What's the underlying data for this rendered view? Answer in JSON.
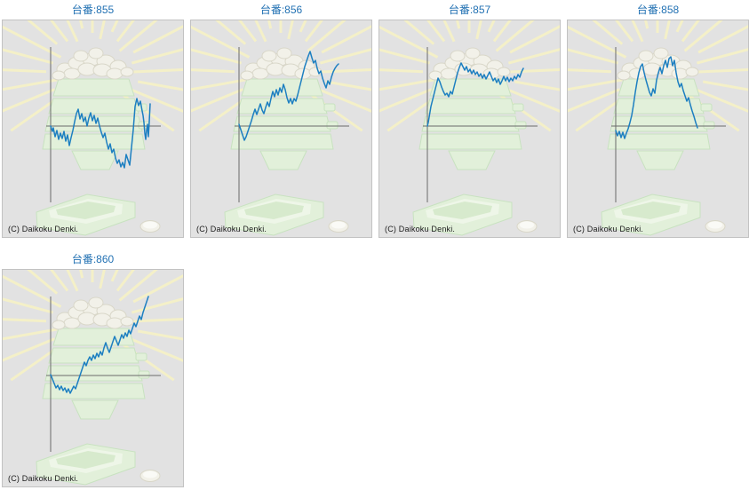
{
  "copyright": "(C) Daikoku Denki.",
  "title_prefix": "台番",
  "colors": {
    "title": "#2271b3",
    "line": "#1d7fc1",
    "axis": "#6a6a6a",
    "panel_bg": "#e2e2e2",
    "panel_border": "#c2c2c2",
    "ray": "#f4f0c8",
    "green_fill": "#e2f0da",
    "green_stroke": "#c8e2c0",
    "green_inner": "#eef6e8",
    "green_hole": "#d7eacd",
    "ball_fill": "#f2f1e9",
    "ball_stroke": "#d9d7c9",
    "copyright": "#1b1b1b"
  },
  "chart_data": [
    {
      "type": "line",
      "title": "台番:855",
      "machine_no": "855",
      "xlabel": "",
      "ylabel": "",
      "grid": false,
      "legend": "none",
      "units": "pixels relative to axis origin (y positive = above baseline)",
      "points": [
        [
          0,
          0
        ],
        [
          2,
          -6
        ],
        [
          3,
          -2
        ],
        [
          5,
          -12
        ],
        [
          7,
          -5
        ],
        [
          9,
          -15
        ],
        [
          11,
          -8
        ],
        [
          13,
          -14
        ],
        [
          15,
          -6
        ],
        [
          17,
          -17
        ],
        [
          19,
          -10
        ],
        [
          21,
          -22
        ],
        [
          23,
          -13
        ],
        [
          25,
          -5
        ],
        [
          27,
          5
        ],
        [
          29,
          14
        ],
        [
          31,
          19
        ],
        [
          33,
          8
        ],
        [
          35,
          14
        ],
        [
          37,
          5
        ],
        [
          39,
          10
        ],
        [
          41,
          0
        ],
        [
          43,
          9
        ],
        [
          45,
          15
        ],
        [
          47,
          6
        ],
        [
          49,
          12
        ],
        [
          51,
          3
        ],
        [
          53,
          9
        ],
        [
          55,
          0
        ],
        [
          57,
          -7
        ],
        [
          59,
          -13
        ],
        [
          61,
          -8
        ],
        [
          63,
          -18
        ],
        [
          65,
          -26
        ],
        [
          67,
          -20
        ],
        [
          69,
          -30
        ],
        [
          71,
          -26
        ],
        [
          73,
          -36
        ],
        [
          75,
          -42
        ],
        [
          77,
          -38
        ],
        [
          79,
          -46
        ],
        [
          81,
          -41
        ],
        [
          83,
          -47
        ],
        [
          85,
          -32
        ],
        [
          87,
          -38
        ],
        [
          89,
          -44
        ],
        [
          91,
          -24
        ],
        [
          93,
          -4
        ],
        [
          95,
          22
        ],
        [
          97,
          31
        ],
        [
          99,
          23
        ],
        [
          101,
          28
        ],
        [
          103,
          17
        ],
        [
          104,
          12
        ],
        [
          105,
          4
        ],
        [
          106,
          -8
        ],
        [
          107,
          -15
        ],
        [
          108,
          -5
        ],
        [
          109,
          2
        ],
        [
          110,
          -12
        ],
        [
          111,
          5
        ],
        [
          112,
          25
        ]
      ]
    },
    {
      "type": "line",
      "title": "台番:856",
      "machine_no": "856",
      "xlabel": "",
      "ylabel": "",
      "grid": false,
      "legend": "none",
      "units": "pixels relative to axis origin (y positive = above baseline)",
      "points": [
        [
          0,
          2
        ],
        [
          2,
          -4
        ],
        [
          4,
          -10
        ],
        [
          6,
          -16
        ],
        [
          8,
          -12
        ],
        [
          10,
          -6
        ],
        [
          12,
          0
        ],
        [
          14,
          6
        ],
        [
          16,
          13
        ],
        [
          18,
          19
        ],
        [
          20,
          13
        ],
        [
          22,
          19
        ],
        [
          24,
          25
        ],
        [
          26,
          18
        ],
        [
          28,
          14
        ],
        [
          30,
          21
        ],
        [
          32,
          27
        ],
        [
          34,
          22
        ],
        [
          36,
          31
        ],
        [
          38,
          39
        ],
        [
          40,
          33
        ],
        [
          42,
          41
        ],
        [
          44,
          35
        ],
        [
          46,
          43
        ],
        [
          48,
          38
        ],
        [
          50,
          47
        ],
        [
          52,
          41
        ],
        [
          54,
          32
        ],
        [
          56,
          26
        ],
        [
          58,
          31
        ],
        [
          60,
          25
        ],
        [
          62,
          31
        ],
        [
          64,
          28
        ],
        [
          66,
          35
        ],
        [
          68,
          43
        ],
        [
          70,
          51
        ],
        [
          72,
          59
        ],
        [
          74,
          67
        ],
        [
          76,
          73
        ],
        [
          78,
          79
        ],
        [
          80,
          84
        ],
        [
          82,
          77
        ],
        [
          84,
          71
        ],
        [
          86,
          74
        ],
        [
          88,
          65
        ],
        [
          90,
          59
        ],
        [
          92,
          62
        ],
        [
          94,
          54
        ],
        [
          96,
          48
        ],
        [
          98,
          43
        ],
        [
          100,
          51
        ],
        [
          102,
          47
        ],
        [
          104,
          55
        ],
        [
          106,
          61
        ],
        [
          108,
          65
        ],
        [
          110,
          68
        ],
        [
          112,
          70
        ]
      ]
    },
    {
      "type": "line",
      "title": "台番:857",
      "machine_no": "857",
      "xlabel": "",
      "ylabel": "",
      "grid": false,
      "legend": "none",
      "units": "pixels relative to axis origin (y positive = above baseline)",
      "points": [
        [
          0,
          0
        ],
        [
          1,
          4
        ],
        [
          2,
          10
        ],
        [
          3,
          16
        ],
        [
          4,
          22
        ],
        [
          6,
          30
        ],
        [
          8,
          38
        ],
        [
          10,
          46
        ],
        [
          12,
          54
        ],
        [
          14,
          50
        ],
        [
          16,
          44
        ],
        [
          18,
          39
        ],
        [
          20,
          35
        ],
        [
          22,
          37
        ],
        [
          24,
          33
        ],
        [
          26,
          39
        ],
        [
          28,
          36
        ],
        [
          30,
          44
        ],
        [
          32,
          52
        ],
        [
          34,
          60
        ],
        [
          36,
          66
        ],
        [
          38,
          71
        ],
        [
          40,
          67
        ],
        [
          42,
          63
        ],
        [
          44,
          67
        ],
        [
          46,
          61
        ],
        [
          48,
          64
        ],
        [
          50,
          59
        ],
        [
          52,
          63
        ],
        [
          54,
          58
        ],
        [
          56,
          61
        ],
        [
          58,
          56
        ],
        [
          60,
          59
        ],
        [
          62,
          54
        ],
        [
          64,
          58
        ],
        [
          66,
          53
        ],
        [
          68,
          57
        ],
        [
          70,
          61
        ],
        [
          72,
          56
        ],
        [
          74,
          51
        ],
        [
          76,
          54
        ],
        [
          78,
          49
        ],
        [
          80,
          53
        ],
        [
          82,
          47
        ],
        [
          84,
          51
        ],
        [
          86,
          56
        ],
        [
          88,
          51
        ],
        [
          90,
          55
        ],
        [
          92,
          50
        ],
        [
          94,
          54
        ],
        [
          96,
          51
        ],
        [
          98,
          56
        ],
        [
          100,
          53
        ],
        [
          102,
          58
        ],
        [
          104,
          55
        ],
        [
          106,
          61
        ],
        [
          108,
          65
        ]
      ]
    },
    {
      "type": "line",
      "title": "台番:858",
      "machine_no": "858",
      "xlabel": "",
      "ylabel": "",
      "grid": false,
      "legend": "none",
      "units": "pixels relative to axis origin (y positive = above baseline)",
      "points": [
        [
          0,
          -5
        ],
        [
          2,
          -11
        ],
        [
          4,
          -6
        ],
        [
          6,
          -13
        ],
        [
          8,
          -7
        ],
        [
          10,
          -14
        ],
        [
          12,
          -8
        ],
        [
          14,
          -3
        ],
        [
          16,
          4
        ],
        [
          18,
          12
        ],
        [
          20,
          24
        ],
        [
          22,
          38
        ],
        [
          24,
          50
        ],
        [
          26,
          60
        ],
        [
          28,
          67
        ],
        [
          30,
          70
        ],
        [
          32,
          60
        ],
        [
          34,
          52
        ],
        [
          36,
          45
        ],
        [
          38,
          38
        ],
        [
          40,
          34
        ],
        [
          42,
          42
        ],
        [
          44,
          37
        ],
        [
          46,
          52
        ],
        [
          48,
          60
        ],
        [
          50,
          66
        ],
        [
          52,
          59
        ],
        [
          54,
          68
        ],
        [
          56,
          74
        ],
        [
          58,
          66
        ],
        [
          60,
          76
        ],
        [
          62,
          78
        ],
        [
          64,
          68
        ],
        [
          66,
          74
        ],
        [
          68,
          60
        ],
        [
          70,
          50
        ],
        [
          72,
          44
        ],
        [
          74,
          48
        ],
        [
          76,
          40
        ],
        [
          78,
          34
        ],
        [
          80,
          28
        ],
        [
          82,
          32
        ],
        [
          84,
          24
        ],
        [
          86,
          17
        ],
        [
          88,
          11
        ],
        [
          90,
          4
        ],
        [
          92,
          -2
        ]
      ]
    },
    {
      "type": "line",
      "title": "台番:860",
      "machine_no": "860",
      "xlabel": "",
      "ylabel": "",
      "grid": false,
      "legend": "none",
      "units": "pixels relative to axis origin (y positive = above baseline)",
      "points": [
        [
          0,
          1
        ],
        [
          2,
          -4
        ],
        [
          4,
          -9
        ],
        [
          6,
          -14
        ],
        [
          8,
          -11
        ],
        [
          10,
          -16
        ],
        [
          12,
          -12
        ],
        [
          14,
          -17
        ],
        [
          16,
          -14
        ],
        [
          18,
          -19
        ],
        [
          20,
          -15
        ],
        [
          22,
          -20
        ],
        [
          24,
          -16
        ],
        [
          26,
          -12
        ],
        [
          28,
          -15
        ],
        [
          30,
          -9
        ],
        [
          32,
          -3
        ],
        [
          34,
          3
        ],
        [
          36,
          9
        ],
        [
          38,
          15
        ],
        [
          40,
          11
        ],
        [
          42,
          17
        ],
        [
          44,
          21
        ],
        [
          46,
          17
        ],
        [
          48,
          23
        ],
        [
          50,
          19
        ],
        [
          52,
          25
        ],
        [
          54,
          21
        ],
        [
          56,
          27
        ],
        [
          58,
          23
        ],
        [
          60,
          31
        ],
        [
          62,
          37
        ],
        [
          64,
          31
        ],
        [
          66,
          26
        ],
        [
          68,
          32
        ],
        [
          70,
          38
        ],
        [
          72,
          44
        ],
        [
          74,
          39
        ],
        [
          76,
          34
        ],
        [
          78,
          40
        ],
        [
          80,
          46
        ],
        [
          82,
          42
        ],
        [
          84,
          48
        ],
        [
          86,
          44
        ],
        [
          88,
          51
        ],
        [
          90,
          47
        ],
        [
          92,
          53
        ],
        [
          94,
          59
        ],
        [
          96,
          55
        ],
        [
          98,
          61
        ],
        [
          100,
          67
        ],
        [
          102,
          63
        ],
        [
          104,
          71
        ],
        [
          106,
          77
        ],
        [
          108,
          83
        ],
        [
          110,
          89
        ]
      ]
    }
  ]
}
